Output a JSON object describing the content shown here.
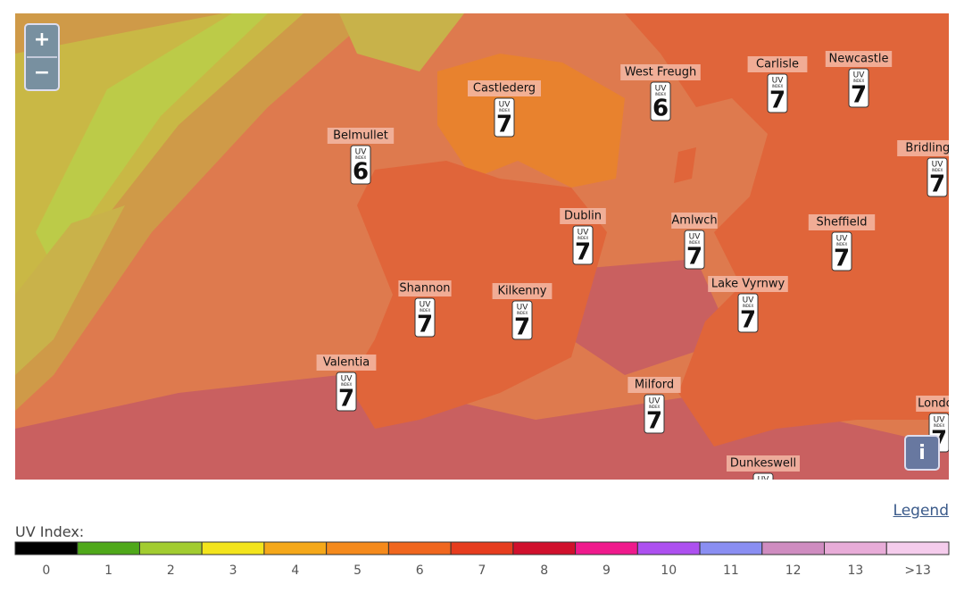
{
  "map": {
    "zoom_in": "+",
    "zoom_out": "−",
    "info": "i",
    "badge": {
      "uv": "UV",
      "index": "INDEX"
    },
    "stations": [
      {
        "name": "Castlederg",
        "uv": 7
      },
      {
        "name": "West Freugh",
        "uv": 6
      },
      {
        "name": "Carlisle",
        "uv": 7
      },
      {
        "name": "Newcastle",
        "uv": 7
      },
      {
        "name": "Belmullet",
        "uv": 6
      },
      {
        "name": "Bridlington",
        "uv": 7
      },
      {
        "name": "Dublin",
        "uv": 7
      },
      {
        "name": "Amlwch",
        "uv": 7
      },
      {
        "name": "Sheffield",
        "uv": 7
      },
      {
        "name": "Shannon",
        "uv": 7
      },
      {
        "name": "Kilkenny",
        "uv": 7
      },
      {
        "name": "Lake Vyrnwy",
        "uv": 7
      },
      {
        "name": "Valentia",
        "uv": 7
      },
      {
        "name": "Milford",
        "uv": 7
      },
      {
        "name": "London",
        "uv": 7
      },
      {
        "name": "Dunkeswell",
        "uv": null
      }
    ]
  },
  "legend": {
    "link": "Legend",
    "title": "UV Index:",
    "items": [
      {
        "label": "0",
        "color": "#000000"
      },
      {
        "label": "1",
        "color": "#4fa81a"
      },
      {
        "label": "2",
        "color": "#a2cc30"
      },
      {
        "label": "3",
        "color": "#f3e41c"
      },
      {
        "label": "4",
        "color": "#f5a81a"
      },
      {
        "label": "5",
        "color": "#f58a1c"
      },
      {
        "label": "6",
        "color": "#f0661e"
      },
      {
        "label": "7",
        "color": "#e63c1e"
      },
      {
        "label": "8",
        "color": "#d0102c"
      },
      {
        "label": "9",
        "color": "#ef1a8c"
      },
      {
        "label": "10",
        "color": "#ad50ef"
      },
      {
        "label": "11",
        "color": "#8a8ef2"
      },
      {
        "label": "12",
        "color": "#cf8cc0"
      },
      {
        "label": "13",
        "color": "#e8acd8"
      },
      {
        "label": ">13",
        "color": "#f5ccec"
      }
    ]
  }
}
